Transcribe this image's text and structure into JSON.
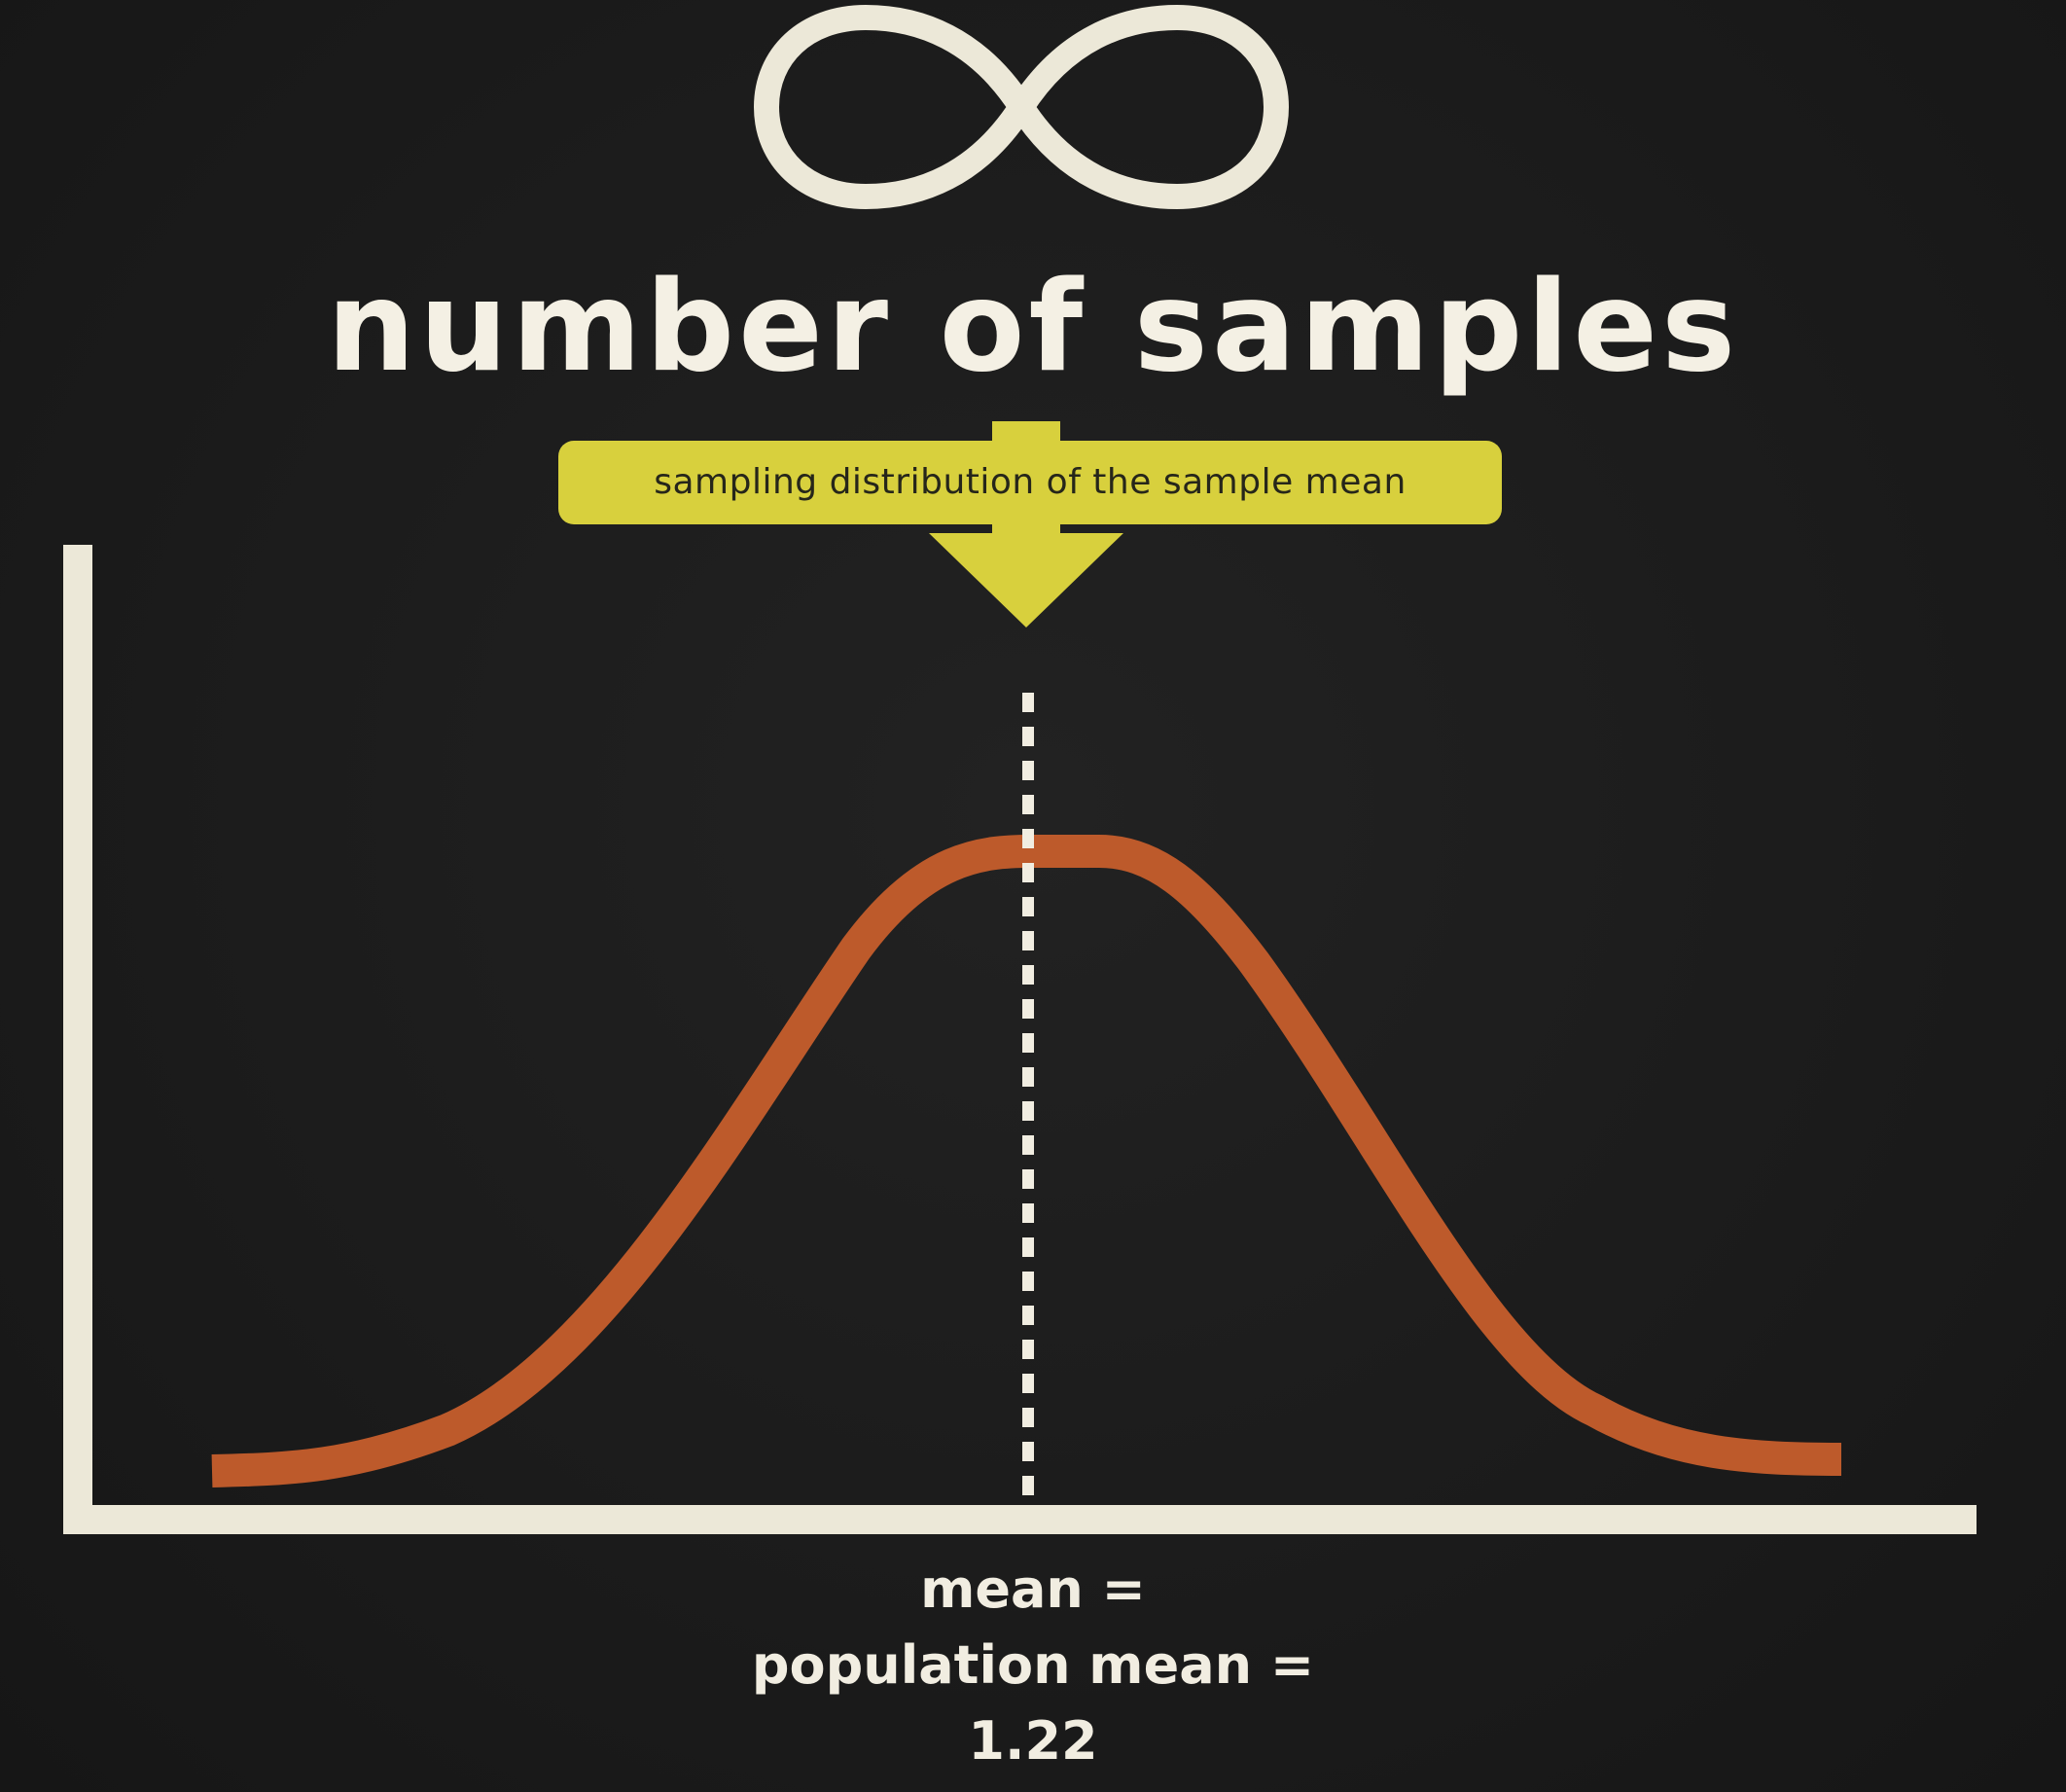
{
  "heading": "number of samples",
  "callout": {
    "label": "sampling distribution of the sample mean"
  },
  "annotation": {
    "line1": "mean =",
    "line2": "population mean =",
    "value": "1.22"
  },
  "colors": {
    "background": "#1b1b1b",
    "chalk": "#f1ede1",
    "curve": "#bd5a2b",
    "callout": "#d8d03d"
  },
  "icons": {
    "top_symbol": "infinity-icon",
    "callout_pointer": "down-arrow-icon"
  }
}
